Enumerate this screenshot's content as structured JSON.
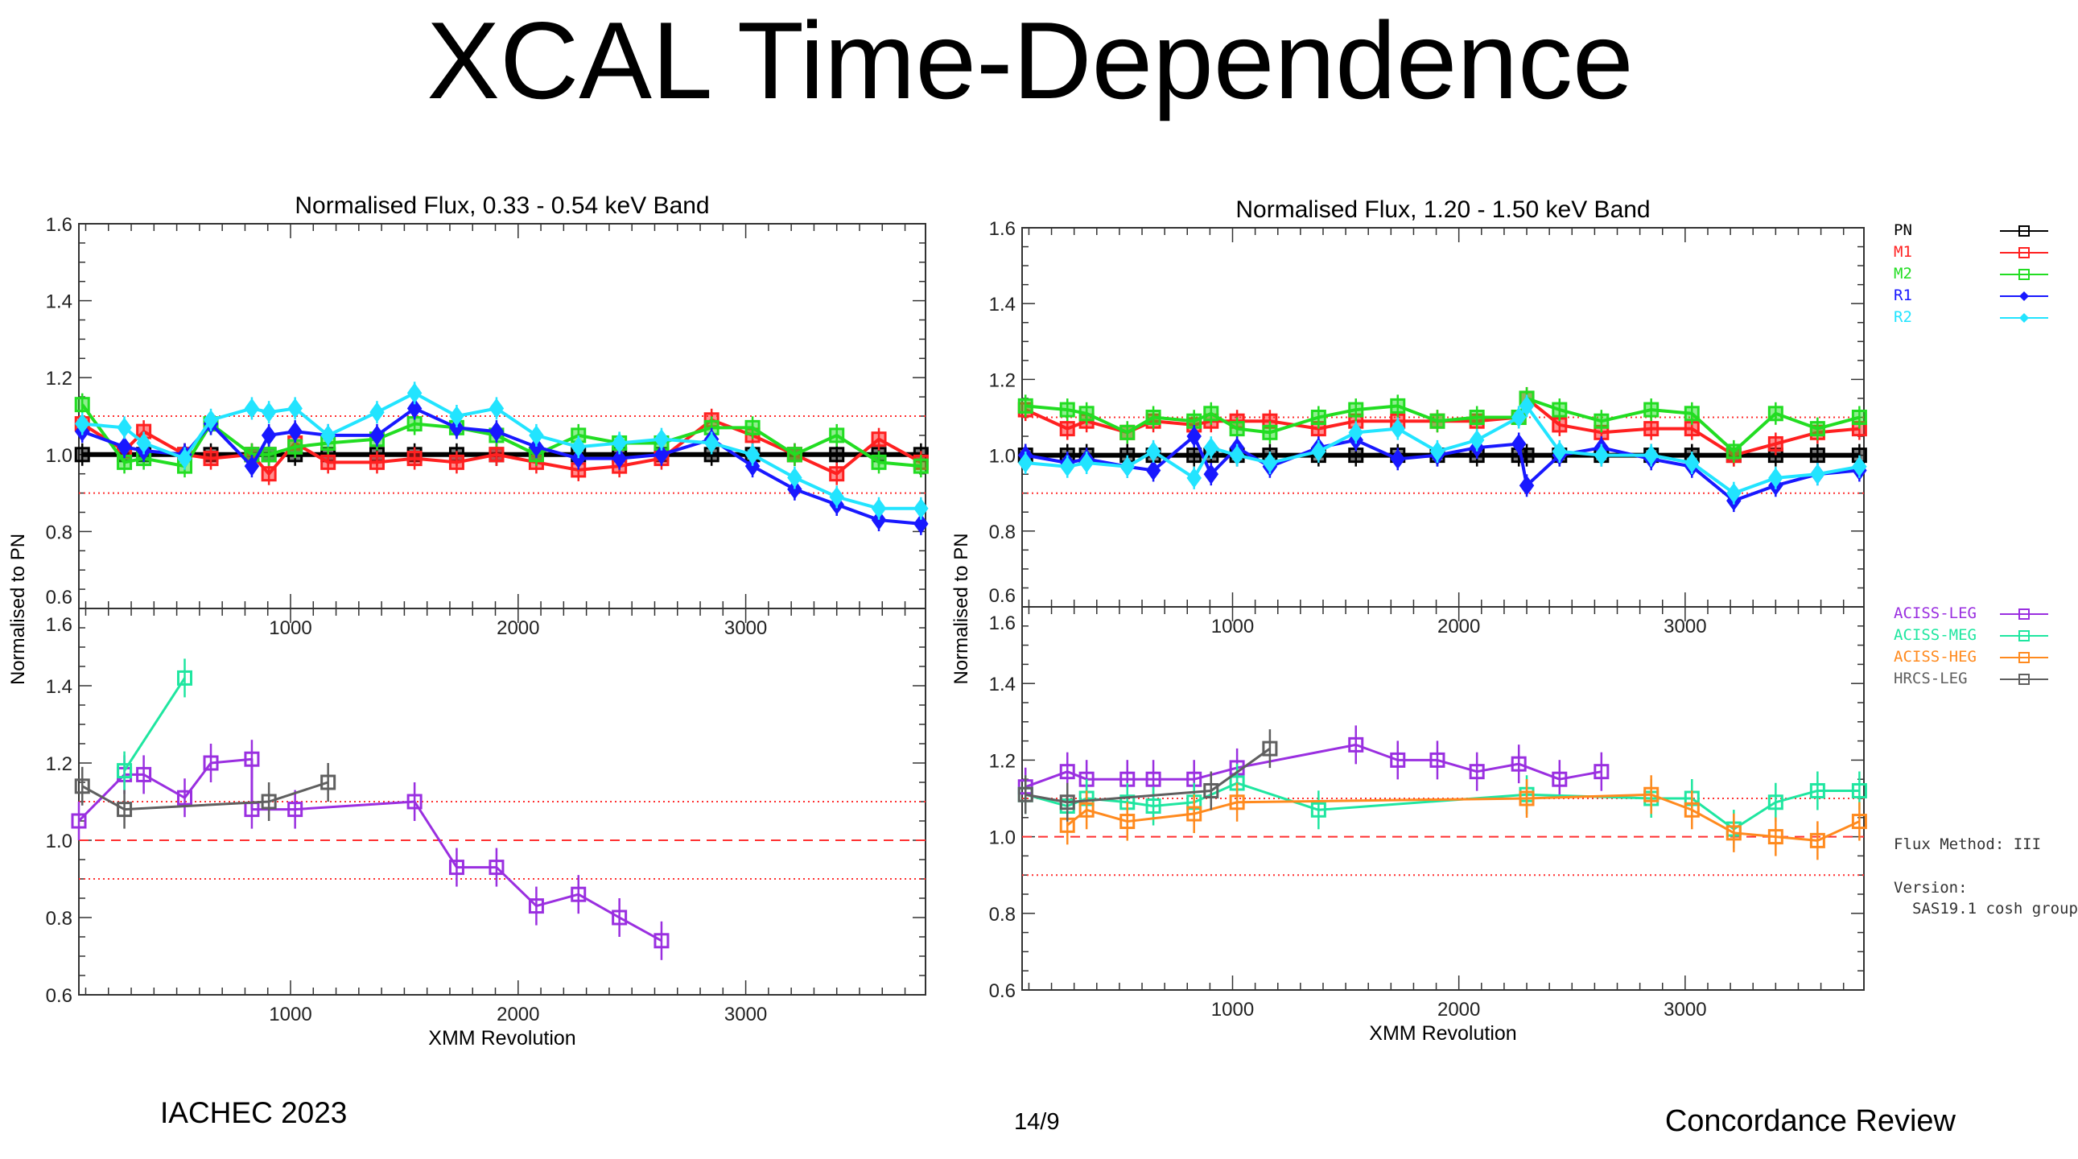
{
  "slide": {
    "title": "XCAL Time-Dependence",
    "footer_left": "IACHEC 2023",
    "footer_page": "14/9",
    "footer_right": "Concordance Review"
  },
  "annotations": {
    "flux_method": "Flux Method: III",
    "version_label": "Version:",
    "version_value": "SAS19.1 cosh group"
  },
  "colors": {
    "PN": "#000000",
    "M1": "#ff2020",
    "M2": "#22dd22",
    "R1": "#1818ff",
    "R2": "#22e4ff",
    "ACISS-LEG": "#9a2fe0",
    "ACISS-MEG": "#1fe6a0",
    "ACISS-HEG": "#ff8a1e",
    "HRCS-LEG": "#5f5f5f",
    "reference": "#ff3030"
  },
  "legend_upper": [
    {
      "name": "PN",
      "marker": "square"
    },
    {
      "name": "M1",
      "marker": "square"
    },
    {
      "name": "M2",
      "marker": "square"
    },
    {
      "name": "R1",
      "marker": "diamond"
    },
    {
      "name": "R2",
      "marker": "diamond"
    }
  ],
  "legend_lower": [
    {
      "name": "ACISS-LEG",
      "marker": "square"
    },
    {
      "name": "ACISS-MEG",
      "marker": "square"
    },
    {
      "name": "ACISS-HEG",
      "marker": "square"
    },
    {
      "name": "HRCS-LEG",
      "marker": "square"
    }
  ],
  "chart_data": [
    {
      "type": "line",
      "title": "Normalised Flux, 0.33 - 0.54 keV Band",
      "xlabel": "XMM Revolution",
      "ylabel": "Normalised to PN",
      "xlim": [
        70,
        3790
      ],
      "xticks": [
        1000,
        2000,
        3000
      ],
      "panels": [
        {
          "id": "xmm",
          "ylim": [
            0.6,
            1.6
          ],
          "yticks": [
            0.6,
            0.8,
            1.0,
            1.2,
            1.4,
            1.6
          ],
          "reference_lines": {
            "dotted": [
              0.9,
              1.1
            ]
          },
          "x": [
            85,
            270,
            355,
            535,
            650,
            830,
            905,
            1020,
            1165,
            1380,
            1545,
            1730,
            1905,
            2080,
            2265,
            2445,
            2630,
            2850,
            3030,
            3215,
            3400,
            3585,
            3770
          ],
          "series": [
            {
              "name": "PN",
              "values": [
                1,
                1,
                1,
                1,
                1,
                1,
                1,
                1,
                1,
                1,
                1,
                1,
                1,
                1,
                1,
                1,
                1,
                1,
                1,
                1,
                1,
                1,
                1
              ]
            },
            {
              "name": "M1",
              "values": [
                1.08,
                1.01,
                1.06,
                1.0,
                0.99,
                1.0,
                0.95,
                1.03,
                0.98,
                0.98,
                0.99,
                0.98,
                1.0,
                0.98,
                0.96,
                0.97,
                0.99,
                1.09,
                1.05,
                1.0,
                0.95,
                1.04,
                0.98
              ]
            },
            {
              "name": "M2",
              "values": [
                1.13,
                0.98,
                0.99,
                0.97,
                1.08,
                1.0,
                1.0,
                1.02,
                1.03,
                1.04,
                1.08,
                1.07,
                1.05,
                1.0,
                1.05,
                1.03,
                1.03,
                1.07,
                1.07,
                1.0,
                1.05,
                0.98,
                0.97
              ]
            },
            {
              "name": "R1",
              "values": [
                1.06,
                1.02,
                1.01,
                1.0,
                1.08,
                0.97,
                1.05,
                1.06,
                1.05,
                1.05,
                1.12,
                1.07,
                1.06,
                1.02,
                0.99,
                0.99,
                1.0,
                1.04,
                0.97,
                0.91,
                0.87,
                0.83,
                0.82
              ]
            },
            {
              "name": "R2",
              "values": [
                1.08,
                1.07,
                1.03,
                0.99,
                1.09,
                1.12,
                1.11,
                1.12,
                1.05,
                1.11,
                1.16,
                1.1,
                1.12,
                1.05,
                1.02,
                1.03,
                1.04,
                1.03,
                1.0,
                0.94,
                0.89,
                0.86,
                0.86
              ]
            }
          ]
        },
        {
          "id": "chandra",
          "ylim": [
            0.6,
            1.6
          ],
          "yticks": [
            0.6,
            0.8,
            1.0,
            1.2,
            1.4,
            1.6
          ],
          "reference_lines": {
            "dotted": [
              0.9,
              1.1
            ],
            "dashed": [
              1.0
            ]
          },
          "series": [
            {
              "name": "ACISS-LEG",
              "points": [
                [
                  70,
                  1.05
                ],
                [
                  270,
                  1.17
                ],
                [
                  355,
                  1.17
                ],
                [
                  535,
                  1.11
                ],
                [
                  650,
                  1.2
                ],
                [
                  830,
                  1.21
                ],
                [
                  830,
                  1.08
                ],
                [
                  1020,
                  1.08
                ],
                [
                  1545,
                  1.1
                ],
                [
                  1730,
                  0.93
                ],
                [
                  1905,
                  0.93
                ],
                [
                  2080,
                  0.83
                ],
                [
                  2265,
                  0.86
                ],
                [
                  2445,
                  0.8
                ],
                [
                  2630,
                  0.74
                ]
              ]
            },
            {
              "name": "ACISS-MEG",
              "points": [
                [
                  270,
                  1.18
                ],
                [
                  535,
                  1.42
                ]
              ]
            },
            {
              "name": "HRCS-LEG",
              "points": [
                [
                  85,
                  1.14
                ],
                [
                  270,
                  1.08
                ],
                [
                  905,
                  1.1
                ],
                [
                  1165,
                  1.15
                ]
              ]
            }
          ]
        }
      ]
    },
    {
      "type": "line",
      "title": "Normalised Flux, 1.20 - 1.50 keV Band",
      "xlabel": "XMM Revolution",
      "ylabel": "Normalised to PN",
      "xlim": [
        70,
        3790
      ],
      "xticks": [
        1000,
        2000,
        3000
      ],
      "panels": [
        {
          "id": "xmm",
          "ylim": [
            0.6,
            1.6
          ],
          "yticks": [
            0.6,
            0.8,
            1.0,
            1.2,
            1.4,
            1.6
          ],
          "reference_lines": {
            "dotted": [
              0.9,
              1.1
            ]
          },
          "x": [
            85,
            270,
            355,
            535,
            650,
            830,
            905,
            1020,
            1165,
            1380,
            1545,
            1730,
            1905,
            2080,
            2265,
            2300,
            2445,
            2630,
            2850,
            3030,
            3215,
            3400,
            3585,
            3770
          ],
          "series": [
            {
              "name": "PN",
              "values": [
                1,
                1,
                1,
                1,
                1,
                1,
                1,
                1,
                1,
                1,
                1,
                1,
                1,
                1,
                1,
                1,
                1,
                1,
                1,
                1,
                1,
                1,
                1,
                1
              ]
            },
            {
              "name": "M1",
              "values": [
                1.12,
                1.07,
                1.09,
                1.06,
                1.09,
                1.08,
                1.09,
                1.09,
                1.09,
                1.07,
                1.09,
                1.09,
                1.09,
                1.09,
                1.1,
                1.15,
                1.08,
                1.06,
                1.07,
                1.07,
                1.0,
                1.03,
                1.06,
                1.07
              ]
            },
            {
              "name": "M2",
              "values": [
                1.13,
                1.12,
                1.11,
                1.06,
                1.1,
                1.09,
                1.11,
                1.07,
                1.06,
                1.1,
                1.12,
                1.13,
                1.09,
                1.1,
                1.1,
                1.15,
                1.12,
                1.09,
                1.12,
                1.11,
                1.01,
                1.11,
                1.07,
                1.1
              ]
            },
            {
              "name": "R1",
              "values": [
                1.0,
                0.98,
                0.99,
                0.97,
                0.96,
                1.05,
                0.95,
                1.02,
                0.97,
                1.02,
                1.04,
                0.99,
                1.0,
                1.02,
                1.03,
                0.92,
                1.0,
                1.02,
                0.99,
                0.97,
                0.88,
                0.92,
                0.95,
                0.96
              ]
            },
            {
              "name": "R2",
              "values": [
                0.98,
                0.97,
                0.98,
                0.97,
                1.01,
                0.94,
                1.02,
                1.0,
                0.98,
                1.01,
                1.06,
                1.07,
                1.01,
                1.04,
                1.1,
                1.13,
                1.01,
                1.0,
                1.0,
                0.98,
                0.9,
                0.94,
                0.95,
                0.97
              ]
            }
          ]
        },
        {
          "id": "chandra",
          "ylim": [
            0.6,
            1.6
          ],
          "yticks": [
            0.6,
            0.8,
            1.0,
            1.2,
            1.4,
            1.6
          ],
          "reference_lines": {
            "dotted": [
              0.9,
              1.1
            ],
            "dashed": [
              1.0
            ]
          },
          "series": [
            {
              "name": "ACISS-LEG",
              "points": [
                [
                  85,
                  1.13
                ],
                [
                  270,
                  1.17
                ],
                [
                  355,
                  1.15
                ],
                [
                  535,
                  1.15
                ],
                [
                  650,
                  1.15
                ],
                [
                  830,
                  1.15
                ],
                [
                  1020,
                  1.18
                ],
                [
                  1545,
                  1.24
                ],
                [
                  1730,
                  1.2
                ],
                [
                  1905,
                  1.2
                ],
                [
                  2080,
                  1.17
                ],
                [
                  2265,
                  1.19
                ],
                [
                  2445,
                  1.15
                ],
                [
                  2630,
                  1.17
                ]
              ]
            },
            {
              "name": "ACISS-MEG",
              "points": [
                [
                  85,
                  1.11
                ],
                [
                  270,
                  1.08
                ],
                [
                  355,
                  1.1
                ],
                [
                  535,
                  1.09
                ],
                [
                  650,
                  1.08
                ],
                [
                  830,
                  1.09
                ],
                [
                  1020,
                  1.14
                ],
                [
                  1380,
                  1.07
                ],
                [
                  2300,
                  1.11
                ],
                [
                  2850,
                  1.1
                ],
                [
                  3030,
                  1.1
                ],
                [
                  3215,
                  1.02
                ],
                [
                  3400,
                  1.09
                ],
                [
                  3585,
                  1.12
                ],
                [
                  3770,
                  1.12
                ]
              ]
            },
            {
              "name": "ACISS-HEG",
              "points": [
                [
                  270,
                  1.03
                ],
                [
                  355,
                  1.07
                ],
                [
                  535,
                  1.04
                ],
                [
                  830,
                  1.06
                ],
                [
                  1020,
                  1.09
                ],
                [
                  2300,
                  1.1
                ],
                [
                  2850,
                  1.11
                ],
                [
                  3030,
                  1.07
                ],
                [
                  3215,
                  1.01
                ],
                [
                  3400,
                  1.0
                ],
                [
                  3585,
                  0.99
                ],
                [
                  3770,
                  1.04
                ]
              ]
            },
            {
              "name": "HRCS-LEG",
              "points": [
                [
                  85,
                  1.11
                ],
                [
                  270,
                  1.09
                ],
                [
                  905,
                  1.12
                ],
                [
                  1165,
                  1.23
                ]
              ]
            }
          ]
        }
      ]
    }
  ]
}
